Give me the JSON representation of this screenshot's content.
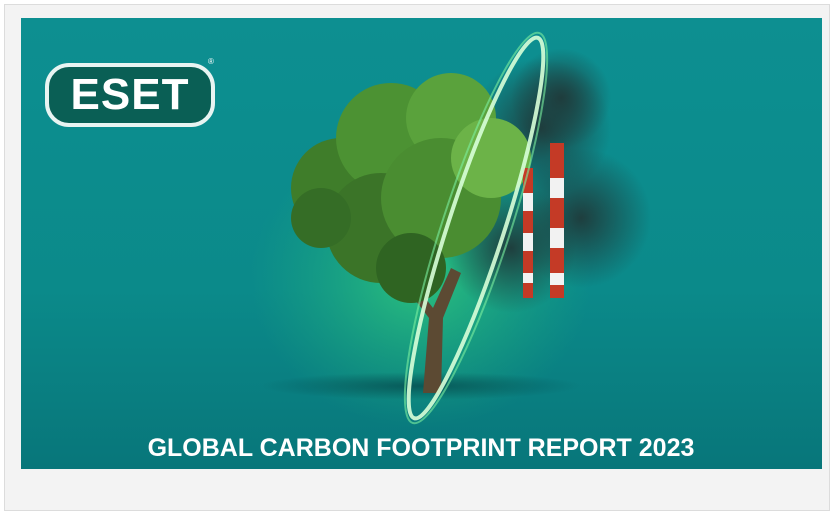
{
  "cover": {
    "logo": {
      "text": "ESET",
      "mark": "®"
    },
    "title": "GLOBAL CARBON FOOTPRINT REPORT 2023"
  }
}
